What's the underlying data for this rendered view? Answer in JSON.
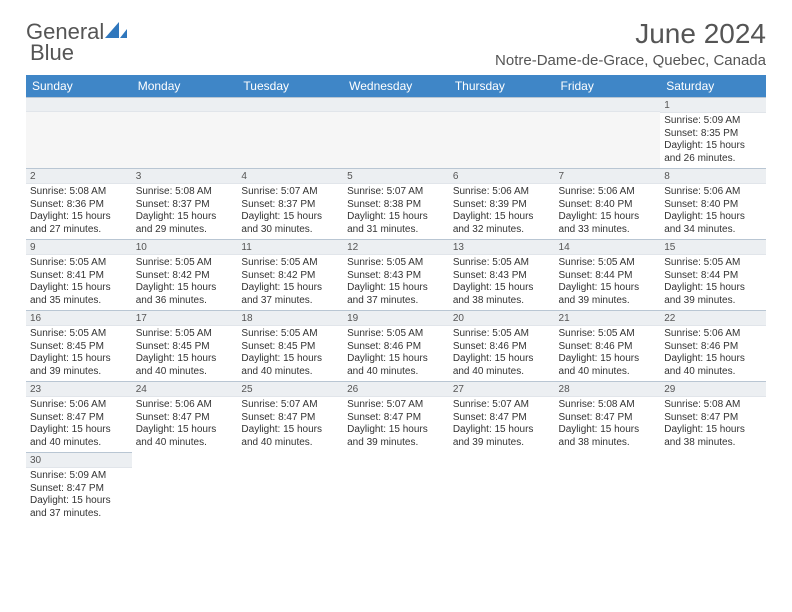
{
  "brand": {
    "part1": "General",
    "part2": "Blue"
  },
  "title": "June 2024",
  "location": "Notre-Dame-de-Grace, Quebec, Canada",
  "colors": {
    "header_bg": "#3f86c7",
    "header_text": "#ffffff",
    "daynum_bg": "#eceff2",
    "border": "#b9c6d3",
    "brand_blue": "#2f77bd",
    "text": "#333333",
    "empty_bg": "#f6f6f6"
  },
  "weekdays": [
    "Sunday",
    "Monday",
    "Tuesday",
    "Wednesday",
    "Thursday",
    "Friday",
    "Saturday"
  ],
  "weeks": [
    [
      null,
      null,
      null,
      null,
      null,
      null,
      {
        "n": "1",
        "sr": "5:09 AM",
        "ss": "8:35 PM",
        "dh": "15",
        "dm": "26"
      }
    ],
    [
      {
        "n": "2",
        "sr": "5:08 AM",
        "ss": "8:36 PM",
        "dh": "15",
        "dm": "27"
      },
      {
        "n": "3",
        "sr": "5:08 AM",
        "ss": "8:37 PM",
        "dh": "15",
        "dm": "29"
      },
      {
        "n": "4",
        "sr": "5:07 AM",
        "ss": "8:37 PM",
        "dh": "15",
        "dm": "30"
      },
      {
        "n": "5",
        "sr": "5:07 AM",
        "ss": "8:38 PM",
        "dh": "15",
        "dm": "31"
      },
      {
        "n": "6",
        "sr": "5:06 AM",
        "ss": "8:39 PM",
        "dh": "15",
        "dm": "32"
      },
      {
        "n": "7",
        "sr": "5:06 AM",
        "ss": "8:40 PM",
        "dh": "15",
        "dm": "33"
      },
      {
        "n": "8",
        "sr": "5:06 AM",
        "ss": "8:40 PM",
        "dh": "15",
        "dm": "34"
      }
    ],
    [
      {
        "n": "9",
        "sr": "5:05 AM",
        "ss": "8:41 PM",
        "dh": "15",
        "dm": "35"
      },
      {
        "n": "10",
        "sr": "5:05 AM",
        "ss": "8:42 PM",
        "dh": "15",
        "dm": "36"
      },
      {
        "n": "11",
        "sr": "5:05 AM",
        "ss": "8:42 PM",
        "dh": "15",
        "dm": "37"
      },
      {
        "n": "12",
        "sr": "5:05 AM",
        "ss": "8:43 PM",
        "dh": "15",
        "dm": "37"
      },
      {
        "n": "13",
        "sr": "5:05 AM",
        "ss": "8:43 PM",
        "dh": "15",
        "dm": "38"
      },
      {
        "n": "14",
        "sr": "5:05 AM",
        "ss": "8:44 PM",
        "dh": "15",
        "dm": "39"
      },
      {
        "n": "15",
        "sr": "5:05 AM",
        "ss": "8:44 PM",
        "dh": "15",
        "dm": "39"
      }
    ],
    [
      {
        "n": "16",
        "sr": "5:05 AM",
        "ss": "8:45 PM",
        "dh": "15",
        "dm": "39"
      },
      {
        "n": "17",
        "sr": "5:05 AM",
        "ss": "8:45 PM",
        "dh": "15",
        "dm": "40"
      },
      {
        "n": "18",
        "sr": "5:05 AM",
        "ss": "8:45 PM",
        "dh": "15",
        "dm": "40"
      },
      {
        "n": "19",
        "sr": "5:05 AM",
        "ss": "8:46 PM",
        "dh": "15",
        "dm": "40"
      },
      {
        "n": "20",
        "sr": "5:05 AM",
        "ss": "8:46 PM",
        "dh": "15",
        "dm": "40"
      },
      {
        "n": "21",
        "sr": "5:05 AM",
        "ss": "8:46 PM",
        "dh": "15",
        "dm": "40"
      },
      {
        "n": "22",
        "sr": "5:06 AM",
        "ss": "8:46 PM",
        "dh": "15",
        "dm": "40"
      }
    ],
    [
      {
        "n": "23",
        "sr": "5:06 AM",
        "ss": "8:47 PM",
        "dh": "15",
        "dm": "40"
      },
      {
        "n": "24",
        "sr": "5:06 AM",
        "ss": "8:47 PM",
        "dh": "15",
        "dm": "40"
      },
      {
        "n": "25",
        "sr": "5:07 AM",
        "ss": "8:47 PM",
        "dh": "15",
        "dm": "40"
      },
      {
        "n": "26",
        "sr": "5:07 AM",
        "ss": "8:47 PM",
        "dh": "15",
        "dm": "39"
      },
      {
        "n": "27",
        "sr": "5:07 AM",
        "ss": "8:47 PM",
        "dh": "15",
        "dm": "39"
      },
      {
        "n": "28",
        "sr": "5:08 AM",
        "ss": "8:47 PM",
        "dh": "15",
        "dm": "38"
      },
      {
        "n": "29",
        "sr": "5:08 AM",
        "ss": "8:47 PM",
        "dh": "15",
        "dm": "38"
      }
    ],
    [
      {
        "n": "30",
        "sr": "5:09 AM",
        "ss": "8:47 PM",
        "dh": "15",
        "dm": "37"
      },
      null,
      null,
      null,
      null,
      null,
      null
    ]
  ],
  "labels": {
    "sunrise": "Sunrise:",
    "sunset": "Sunset:",
    "daylight_prefix": "Daylight:",
    "hours_word": "hours",
    "and_word": "and",
    "minutes_word": "minutes."
  }
}
